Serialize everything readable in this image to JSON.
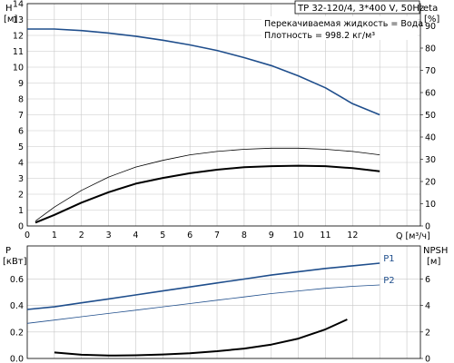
{
  "header": {
    "title": "TP 32-120/4, 3*400 V, 50Hz",
    "liquid": "Перекачиваемая жидкость = Вода",
    "density": "Плотность = 998.2 кг/м³"
  },
  "chart_data": [
    {
      "type": "line",
      "name": "top-chart",
      "y_left": {
        "label_line1": "H",
        "label_line2": "[м]",
        "range": [
          0,
          14
        ],
        "ticks": [
          "0",
          "1",
          "2",
          "3",
          "4",
          "5",
          "6",
          "7",
          "8",
          "9",
          "10",
          "11",
          "12",
          "13",
          "14"
        ]
      },
      "y_right": {
        "label_line1": "eta",
        "label_line2": "[%]",
        "range": [
          0,
          100
        ],
        "ticks": [
          "0",
          "10",
          "20",
          "30",
          "40",
          "50",
          "60",
          "70",
          "80",
          "90"
        ]
      },
      "x": {
        "label": "Q [м³/ч]",
        "range": [
          0,
          14.5
        ],
        "ticks": [
          "0",
          "1",
          "2",
          "3",
          "4",
          "5",
          "6",
          "7",
          "8",
          "9",
          "10",
          "11",
          "12"
        ]
      },
      "grid": true,
      "series": [
        {
          "id": "H",
          "axis": "left",
          "color": "#1f4e8c",
          "width": 1.6,
          "points": [
            [
              0,
              12.4
            ],
            [
              1,
              12.4
            ],
            [
              2,
              12.3
            ],
            [
              3,
              12.15
            ],
            [
              4,
              11.95
            ],
            [
              5,
              11.7
            ],
            [
              6,
              11.4
            ],
            [
              7,
              11.05
            ],
            [
              8,
              10.6
            ],
            [
              9,
              10.1
            ],
            [
              10,
              9.45
            ],
            [
              11,
              8.7
            ],
            [
              12,
              7.7
            ],
            [
              13,
              7.0
            ]
          ]
        },
        {
          "id": "eta",
          "axis": "right",
          "color": "#000000",
          "width": 0.8,
          "points": [
            [
              0.3,
              2.2
            ],
            [
              1,
              8.5
            ],
            [
              2,
              16
            ],
            [
              3,
              22
            ],
            [
              4,
              26.5
            ],
            [
              5,
              29.5
            ],
            [
              6,
              32
            ],
            [
              7,
              33.5
            ],
            [
              8,
              34.5
            ],
            [
              9,
              35
            ],
            [
              10,
              35
            ],
            [
              11,
              34.5
            ],
            [
              12,
              33.5
            ],
            [
              13,
              32
            ]
          ]
        },
        {
          "id": "eta_total",
          "axis": "right",
          "color": "#000000",
          "width": 2.0,
          "points": [
            [
              0.3,
              1.5
            ],
            [
              1,
              5
            ],
            [
              2,
              10.5
            ],
            [
              3,
              15.2
            ],
            [
              4,
              19
            ],
            [
              5,
              21.6
            ],
            [
              6,
              23.7
            ],
            [
              7,
              25.3
            ],
            [
              8,
              26.4
            ],
            [
              9,
              26.9
            ],
            [
              10,
              27.1
            ],
            [
              11,
              26.9
            ],
            [
              12,
              26
            ],
            [
              13,
              24.6
            ]
          ]
        }
      ]
    },
    {
      "type": "line",
      "name": "bottom-chart",
      "y_left": {
        "label_line1": "P",
        "label_line2": "[кВт]",
        "range": [
          0,
          0.85
        ],
        "ticks": [
          "0.0",
          "0.2",
          "0.4",
          "0.6"
        ]
      },
      "y_right": {
        "label_line1": "NPSH",
        "label_line2": "[м]",
        "range": [
          0,
          8.5
        ],
        "ticks": [
          "0",
          "2",
          "4",
          "6"
        ]
      },
      "x": {
        "range": [
          0,
          14.5
        ]
      },
      "grid": true,
      "series": [
        {
          "id": "P1",
          "label": "P1",
          "axis": "left",
          "color": "#1f4e8c",
          "width": 1.6,
          "points": [
            [
              0,
              0.37
            ],
            [
              1,
              0.39
            ],
            [
              2,
              0.42
            ],
            [
              3,
              0.45
            ],
            [
              4,
              0.48
            ],
            [
              5,
              0.51
            ],
            [
              6,
              0.54
            ],
            [
              7,
              0.57
            ],
            [
              8,
              0.6
            ],
            [
              9,
              0.63
            ],
            [
              10,
              0.655
            ],
            [
              11,
              0.68
            ],
            [
              12,
              0.7
            ],
            [
              13,
              0.72
            ]
          ]
        },
        {
          "id": "P2",
          "label": "P2",
          "axis": "left",
          "color": "#1f4e8c",
          "width": 0.8,
          "points": [
            [
              0,
              0.265
            ],
            [
              1,
              0.29
            ],
            [
              2,
              0.315
            ],
            [
              3,
              0.34
            ],
            [
              4,
              0.365
            ],
            [
              5,
              0.39
            ],
            [
              6,
              0.415
            ],
            [
              7,
              0.44
            ],
            [
              8,
              0.465
            ],
            [
              9,
              0.49
            ],
            [
              10,
              0.51
            ],
            [
              11,
              0.53
            ],
            [
              12,
              0.545
            ],
            [
              13,
              0.555
            ]
          ]
        },
        {
          "id": "NPSH",
          "axis": "right",
          "color": "#000000",
          "width": 2.0,
          "points": [
            [
              1,
              0.45
            ],
            [
              2,
              0.28
            ],
            [
              3,
              0.22
            ],
            [
              4,
              0.24
            ],
            [
              5,
              0.3
            ],
            [
              6,
              0.4
            ],
            [
              7,
              0.55
            ],
            [
              8,
              0.75
            ],
            [
              9,
              1.05
            ],
            [
              10,
              1.5
            ],
            [
              11,
              2.2
            ],
            [
              11.8,
              2.95
            ]
          ]
        }
      ]
    }
  ]
}
